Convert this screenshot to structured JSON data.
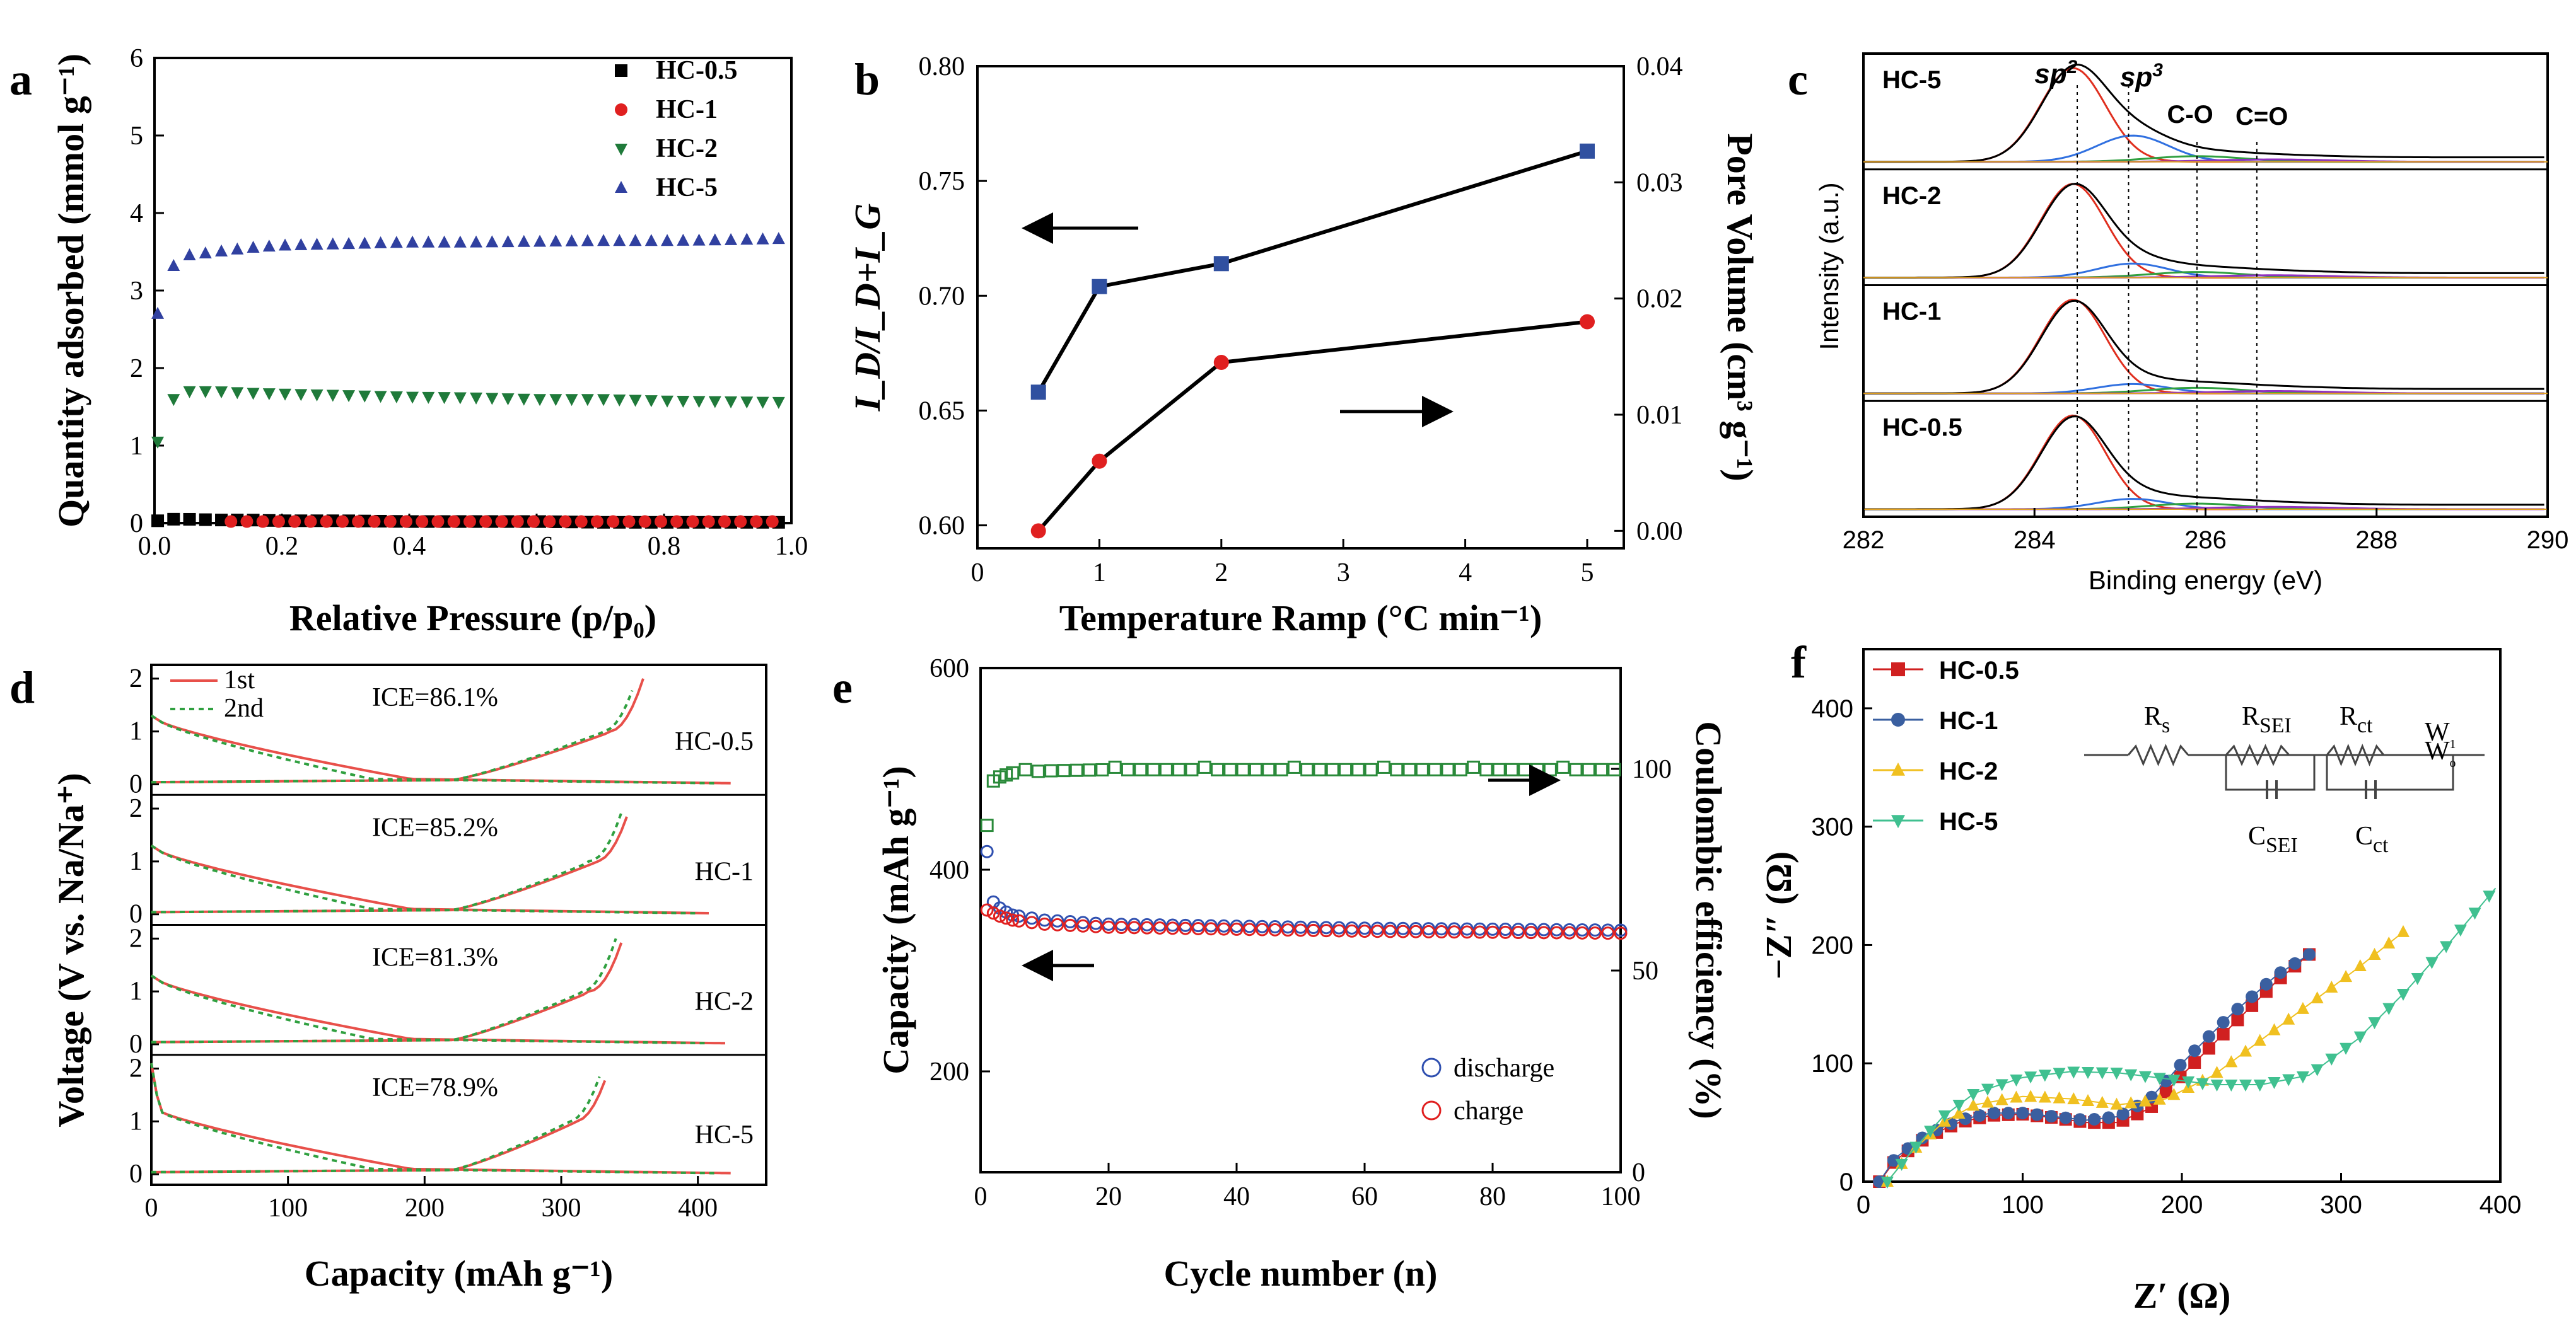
{
  "figure": {
    "panel_labels": [
      "a",
      "b",
      "c",
      "d",
      "e",
      "f"
    ]
  },
  "chart_data": [
    {
      "id": "a",
      "type": "scatter",
      "xlabel": "Relative Pressure (p/p₀)",
      "ylabel": "Quantity adsorbed (mmol g⁻¹)",
      "xlim": [
        0,
        1.0
      ],
      "ylim": [
        0,
        6
      ],
      "xticks": [
        "0.0",
        "0.2",
        "0.4",
        "0.6",
        "0.8",
        "1.0"
      ],
      "yticks": [
        "0",
        "1",
        "2",
        "3",
        "4",
        "5",
        "6"
      ],
      "legend_position": "top-right",
      "series": [
        {
          "name": "HC-0.5",
          "marker": "square",
          "color": "#000000",
          "x": [
            0.005,
            0.02,
            0.05,
            0.1,
            0.15,
            0.2,
            0.3,
            0.4,
            0.5,
            0.6,
            0.7,
            0.8,
            0.9,
            0.99
          ],
          "y": [
            0.03,
            0.05,
            0.05,
            0.04,
            0.04,
            0.03,
            0.03,
            0.02,
            0.02,
            0.02,
            0.01,
            0.01,
            0.01,
            0.01
          ]
        },
        {
          "name": "HC-1",
          "marker": "circle",
          "color": "#e02020",
          "x": [
            0.12,
            0.18,
            0.25,
            0.35,
            0.45,
            0.55,
            0.65,
            0.75,
            0.85,
            0.95,
            0.99
          ],
          "y": [
            0.02,
            0.02,
            0.02,
            0.02,
            0.02,
            0.02,
            0.02,
            0.02,
            0.02,
            0.02,
            0.02
          ]
        },
        {
          "name": "HC-2",
          "marker": "triangle-down",
          "color": "#1f7a3a",
          "x": [
            0.005,
            0.02,
            0.05,
            0.1,
            0.15,
            0.2,
            0.3,
            0.4,
            0.5,
            0.6,
            0.7,
            0.8,
            0.9,
            1.0
          ],
          "y": [
            1.05,
            1.55,
            1.7,
            1.7,
            1.68,
            1.67,
            1.65,
            1.63,
            1.62,
            1.6,
            1.6,
            1.58,
            1.57,
            1.56
          ]
        },
        {
          "name": "HC-5",
          "marker": "triangle-up",
          "color": "#3040a0",
          "x": [
            0.005,
            0.02,
            0.05,
            0.1,
            0.15,
            0.2,
            0.3,
            0.4,
            0.5,
            0.6,
            0.7,
            0.8,
            0.9,
            1.0
          ],
          "y": [
            2.7,
            3.25,
            3.45,
            3.5,
            3.55,
            3.58,
            3.6,
            3.62,
            3.62,
            3.63,
            3.64,
            3.64,
            3.65,
            3.67
          ]
        }
      ]
    },
    {
      "id": "b",
      "type": "line",
      "xlabel": "Temperature Ramp (°C min⁻¹)",
      "ylabel_left": "I_D/I_D+I_G",
      "ylabel_right": "Pore Volume (cm³ g⁻¹)",
      "xlim": [
        0,
        5.3
      ],
      "ylim_left": [
        0.59,
        0.8
      ],
      "ylim_right": [
        -0.0015,
        0.04
      ],
      "xticks": [
        "0",
        "1",
        "2",
        "3",
        "4",
        "5"
      ],
      "yticks_left": [
        "0.60",
        "0.65",
        "0.70",
        "0.75",
        "0.80"
      ],
      "yticks_right": [
        "0.00",
        "0.01",
        "0.02",
        "0.03",
        "0.04"
      ],
      "series": [
        {
          "name": "I_D/I_D+I_G",
          "axis": "left",
          "marker": "square",
          "color": "#3050a0",
          "x": [
            0.5,
            1,
            2,
            5
          ],
          "y": [
            0.658,
            0.704,
            0.714,
            0.763
          ]
        },
        {
          "name": "Pore Volume",
          "axis": "right",
          "marker": "circle",
          "color": "#e02020",
          "x": [
            0.5,
            1,
            2,
            5
          ],
          "y": [
            0.0,
            0.006,
            0.0145,
            0.018
          ]
        }
      ]
    },
    {
      "id": "c",
      "type": "line",
      "xlabel": "Binding energy (eV)",
      "ylabel": "Intensity (a.u.)",
      "xlim": [
        282,
        290
      ],
      "xticks": [
        "282",
        "284",
        "286",
        "288",
        "290"
      ],
      "peak_labels": [
        "sp2",
        "sp3",
        "C-O",
        "C=O"
      ],
      "peak_positions": [
        284.5,
        285.1,
        285.9,
        286.6
      ],
      "stacked_panels": [
        {
          "name": "HC-5",
          "sp3_fraction": 0.28
        },
        {
          "name": "HC-2",
          "sp3_fraction": 0.15
        },
        {
          "name": "HC-1",
          "sp3_fraction": 0.1
        },
        {
          "name": "HC-0.5",
          "sp3_fraction": 0.11
        }
      ]
    },
    {
      "id": "d",
      "type": "line",
      "xlabel": "Capacity (mAh g⁻¹)",
      "ylabel": "Voltage (V vs. Na/Na⁺)",
      "xlim": [
        0,
        450
      ],
      "ylim": [
        -0.2,
        2.2
      ],
      "xticks": [
        "0",
        "100",
        "200",
        "300",
        "400"
      ],
      "yticks": [
        "0",
        "1",
        "2"
      ],
      "legend": [
        "1st",
        "2nd"
      ],
      "stacked_panels": [
        {
          "name": "HC-0.5",
          "ice": "ICE=86.1%",
          "discharge_end": 425,
          "charge_end": 360
        },
        {
          "name": "HC-1",
          "ice": "ICE=85.2%",
          "discharge_end": 410,
          "charge_end": 350
        },
        {
          "name": "HC-2",
          "ice": "ICE=81.3%",
          "discharge_end": 420,
          "charge_end": 345
        },
        {
          "name": "HC-5",
          "ice": "ICE=78.9%",
          "discharge_end": 425,
          "charge_end": 335
        }
      ]
    },
    {
      "id": "e",
      "type": "scatter",
      "xlabel": "Cycle number (n)",
      "ylabel_left": "Capacity (mAh g⁻¹)",
      "ylabel_right": "Coulombic efficiency (%)",
      "xlim": [
        0,
        100
      ],
      "ylim_left": [
        100,
        600
      ],
      "ylim_right": [
        0,
        125
      ],
      "xticks": [
        "0",
        "20",
        "40",
        "60",
        "80",
        "100"
      ],
      "yticks_left": [
        "200",
        "400",
        "600"
      ],
      "yticks_right": [
        "0",
        "50",
        "100"
      ],
      "legend_position": "bottom-right",
      "series": [
        {
          "name": "discharge",
          "axis": "left",
          "marker": "open-circle",
          "color": "#3050b0",
          "x": [
            1,
            2,
            3,
            4,
            5,
            10,
            20,
            40,
            60,
            80,
            100
          ],
          "y": [
            418,
            368,
            362,
            358,
            355,
            350,
            346,
            344,
            342,
            341,
            340
          ]
        },
        {
          "name": "charge",
          "axis": "left",
          "marker": "open-circle",
          "color": "#e02020",
          "x": [
            1,
            2,
            3,
            4,
            5,
            10,
            20,
            40,
            60,
            80,
            100
          ],
          "y": [
            360,
            357,
            354,
            352,
            350,
            346,
            343,
            341,
            339,
            338,
            337
          ]
        },
        {
          "name": "Coulombic efficiency",
          "axis": "right",
          "marker": "open-square",
          "color": "#2a8a3a",
          "x": [
            1,
            2,
            3,
            5,
            10,
            20,
            40,
            60,
            80,
            100
          ],
          "y": [
            86,
            97,
            98,
            99,
            99.5,
            99.8,
            99.8,
            99.8,
            99.8,
            99.8
          ]
        }
      ]
    },
    {
      "id": "f",
      "type": "line",
      "xlabel": "Z′ (Ω)",
      "ylabel": "−Z″ (Ω)",
      "xlim": [
        0,
        400
      ],
      "ylim": [
        0,
        450
      ],
      "xticks": [
        "0",
        "100",
        "200",
        "300",
        "400"
      ],
      "yticks": [
        "0",
        "100",
        "200",
        "300",
        "400"
      ],
      "legend_position": "top-left",
      "circuit_labels": {
        "rs": "R",
        "rs_sub": "s",
        "rsei": "R",
        "rsei_sub": "SEI",
        "rct": "R",
        "rct_sub": "ct",
        "csei": "C",
        "csei_sub": "SEI",
        "cct": "C",
        "cct_sub": "ct",
        "w1": "W",
        "w1_sub": "1",
        "w0": "W",
        "w0_sub": "o"
      },
      "series": [
        {
          "name": "HC-0.5",
          "marker": "square",
          "color": "#d02020",
          "x": [
            10,
            20,
            40,
            60,
            80,
            100,
            120,
            140,
            160,
            180,
            200,
            230,
            260,
            280
          ],
          "y": [
            0,
            18,
            38,
            50,
            56,
            57,
            54,
            50,
            50,
            62,
            90,
            130,
            170,
            192
          ]
        },
        {
          "name": "HC-1",
          "marker": "circle",
          "color": "#3a5fa0",
          "x": [
            10,
            20,
            40,
            60,
            80,
            100,
            120,
            140,
            160,
            180,
            200,
            230,
            260,
            280
          ],
          "y": [
            0,
            20,
            40,
            52,
            58,
            58,
            55,
            52,
            55,
            70,
            100,
            140,
            175,
            192
          ]
        },
        {
          "name": "HC-2",
          "marker": "triangle-up",
          "color": "#f0c020",
          "x": [
            15,
            30,
            50,
            70,
            100,
            130,
            160,
            190,
            220,
            250,
            280,
            310,
            340
          ],
          "y": [
            0,
            25,
            50,
            65,
            72,
            70,
            65,
            70,
            90,
            120,
            150,
            180,
            212
          ]
        },
        {
          "name": "HC-5",
          "marker": "triangle-down",
          "color": "#40c090",
          "x": [
            15,
            30,
            50,
            70,
            100,
            130,
            160,
            190,
            220,
            250,
            280,
            310,
            340,
            370,
            397
          ],
          "y": [
            0,
            25,
            55,
            75,
            88,
            93,
            92,
            87,
            82,
            82,
            90,
            120,
            160,
            205,
            248
          ]
        }
      ]
    }
  ]
}
